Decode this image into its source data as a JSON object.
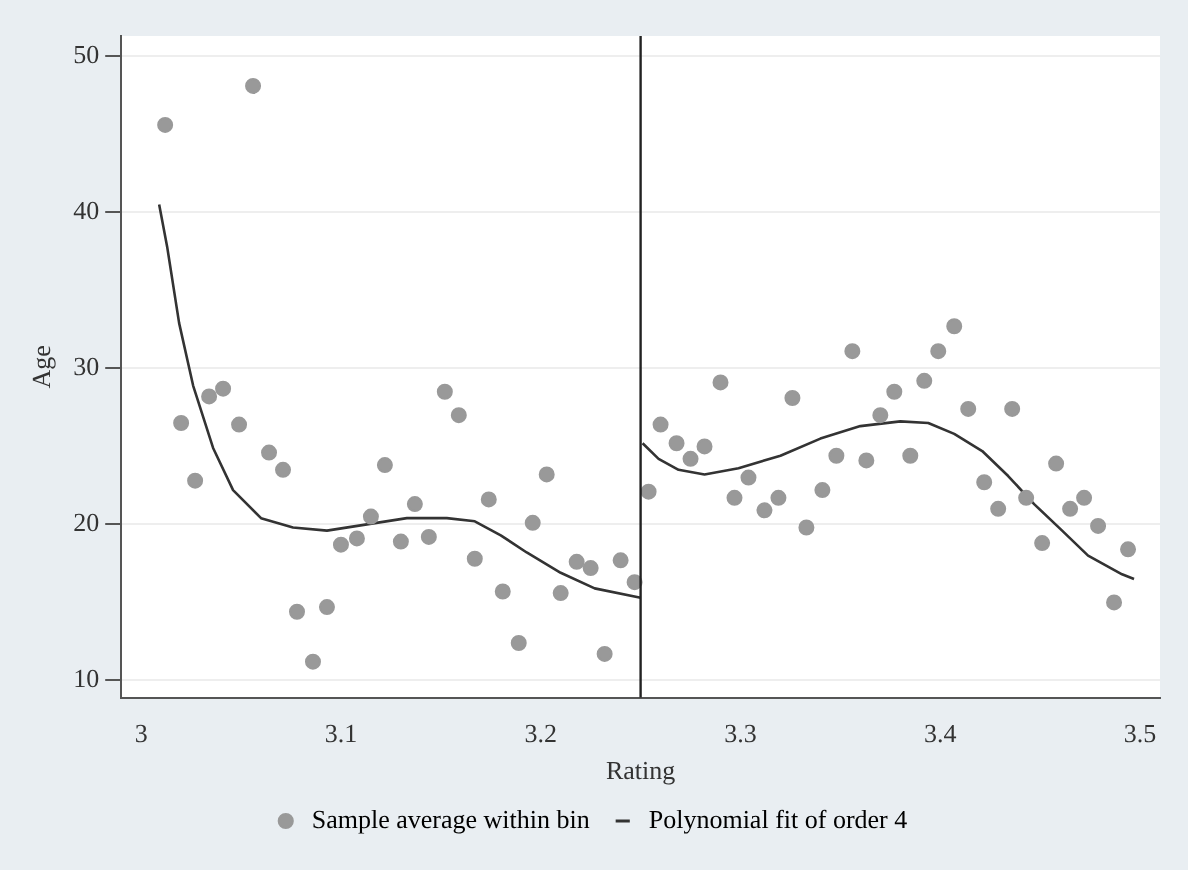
{
  "chart_data": {
    "type": "scatter",
    "xlabel": "Rating",
    "ylabel": "Age",
    "xlim": [
      2.99,
      3.51
    ],
    "ylim": [
      8.9,
      51.3
    ],
    "xticks": [
      3,
      3.1,
      3.2,
      3.3,
      3.4,
      3.5
    ],
    "yticks": [
      10,
      20,
      30,
      40,
      50
    ],
    "grid": "y",
    "legend": "bottom",
    "ref_lines": [
      {
        "axis": "x",
        "value": 3.25,
        "color": "#222222"
      }
    ],
    "series": [
      {
        "name": "Sample average within bin",
        "type": "scatter",
        "marker": "circle",
        "color": "#999999",
        "x": [
          3.012,
          3.02,
          3.027,
          3.034,
          3.041,
          3.049,
          3.056,
          3.064,
          3.071,
          3.078,
          3.086,
          3.093,
          3.1,
          3.108,
          3.115,
          3.122,
          3.13,
          3.137,
          3.144,
          3.152,
          3.159,
          3.167,
          3.174,
          3.181,
          3.189,
          3.196,
          3.203,
          3.21,
          3.218,
          3.225,
          3.232,
          3.24,
          3.247,
          3.254,
          3.26,
          3.268,
          3.275,
          3.282,
          3.29,
          3.297,
          3.304,
          3.312,
          3.319,
          3.326,
          3.333,
          3.341,
          3.348,
          3.356,
          3.363,
          3.37,
          3.377,
          3.385,
          3.392,
          3.399,
          3.407,
          3.414,
          3.422,
          3.429,
          3.436,
          3.443,
          3.451,
          3.458,
          3.465,
          3.472,
          3.479,
          3.487,
          3.494
        ],
        "values": [
          45.6,
          26.5,
          22.8,
          28.2,
          28.7,
          26.4,
          48.1,
          24.6,
          23.5,
          14.4,
          11.2,
          14.7,
          18.7,
          19.1,
          20.5,
          23.8,
          18.9,
          21.3,
          19.2,
          28.5,
          27.0,
          17.8,
          21.6,
          15.7,
          12.4,
          20.1,
          23.2,
          15.6,
          17.6,
          17.2,
          11.7,
          17.7,
          16.3,
          22.1,
          26.4,
          25.2,
          24.2,
          25.0,
          29.1,
          21.7,
          23.0,
          20.9,
          21.7,
          28.1,
          19.8,
          22.2,
          24.4,
          31.1,
          24.1,
          27.0,
          28.5,
          24.4,
          29.2,
          31.1,
          32.7,
          27.4,
          22.7,
          21.0,
          27.4,
          21.7,
          18.8,
          23.9,
          21.0,
          21.7,
          19.9,
          15.0,
          18.4
        ]
      },
      {
        "name": "Polynomial fit of order 4",
        "type": "line",
        "marker": "none",
        "line_style": "solid",
        "color": "#333333",
        "x": [
          3.009,
          3.013,
          3.019,
          3.026,
          3.036,
          3.046,
          3.06,
          3.076,
          3.093,
          3.113,
          3.133,
          3.153,
          3.167,
          3.18,
          3.193,
          3.21,
          3.227,
          3.25
        ],
        "values": [
          40.5,
          37.8,
          32.9,
          28.9,
          24.9,
          22.2,
          20.4,
          19.8,
          19.6,
          20.0,
          20.4,
          20.4,
          20.2,
          19.3,
          18.2,
          16.9,
          15.9,
          15.3
        ]
      },
      {
        "type": "line",
        "marker": "none",
        "line_style": "solid",
        "color": "#333333",
        "x": [
          3.251,
          3.259,
          3.269,
          3.282,
          3.299,
          3.32,
          3.34,
          3.36,
          3.38,
          3.394,
          3.407,
          3.421,
          3.434,
          3.447,
          3.461,
          3.474,
          3.491,
          3.497
        ],
        "values": [
          25.2,
          24.2,
          23.5,
          23.2,
          23.6,
          24.4,
          25.5,
          26.3,
          26.6,
          26.5,
          25.8,
          24.7,
          23.1,
          21.3,
          19.6,
          18.0,
          16.8,
          16.5
        ]
      }
    ]
  }
}
